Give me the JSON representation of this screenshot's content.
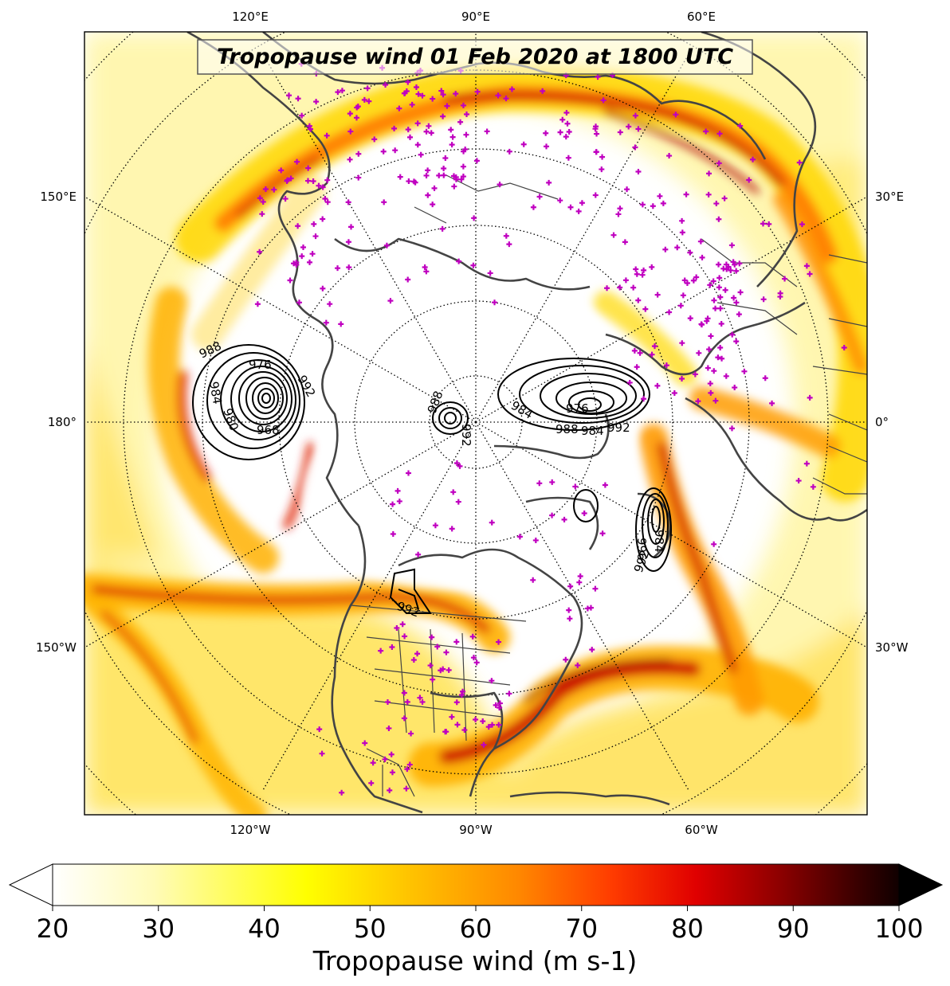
{
  "title": "Tropopause wind 01 Feb 2020 at 1800 UTC",
  "colorbar": {
    "label": "Tropopause wind (m s-1)",
    "ticks": [
      "20",
      "30",
      "40",
      "50",
      "60",
      "70",
      "80",
      "90",
      "100"
    ],
    "min": 20,
    "max": 100,
    "extend": "both",
    "colormap": "hot_r"
  },
  "map": {
    "projection": "north polar stereographic",
    "longitude_labels_top": [
      "120°E",
      "90°E",
      "60°E"
    ],
    "longitude_labels_bottom": [
      "120°W",
      "90°W",
      "60°W"
    ],
    "longitude_labels_left": [
      "150°E",
      "180°",
      "150°W"
    ],
    "longitude_labels_right": [
      "30°E",
      "0°",
      "30°W"
    ],
    "graticule": "dotted",
    "coastline_color": "#444444",
    "station_marker_color": "#c000c0",
    "station_marker_symbol": "+"
  },
  "contours": {
    "variable": "sea level pressure (hPa)",
    "color": "#000000",
    "labels": [
      "988",
      "976",
      "992",
      "984",
      "980",
      "968",
      "984",
      "976",
      "988",
      "984",
      "992",
      "992",
      "988",
      "992",
      "984",
      "996",
      "992"
    ]
  }
}
